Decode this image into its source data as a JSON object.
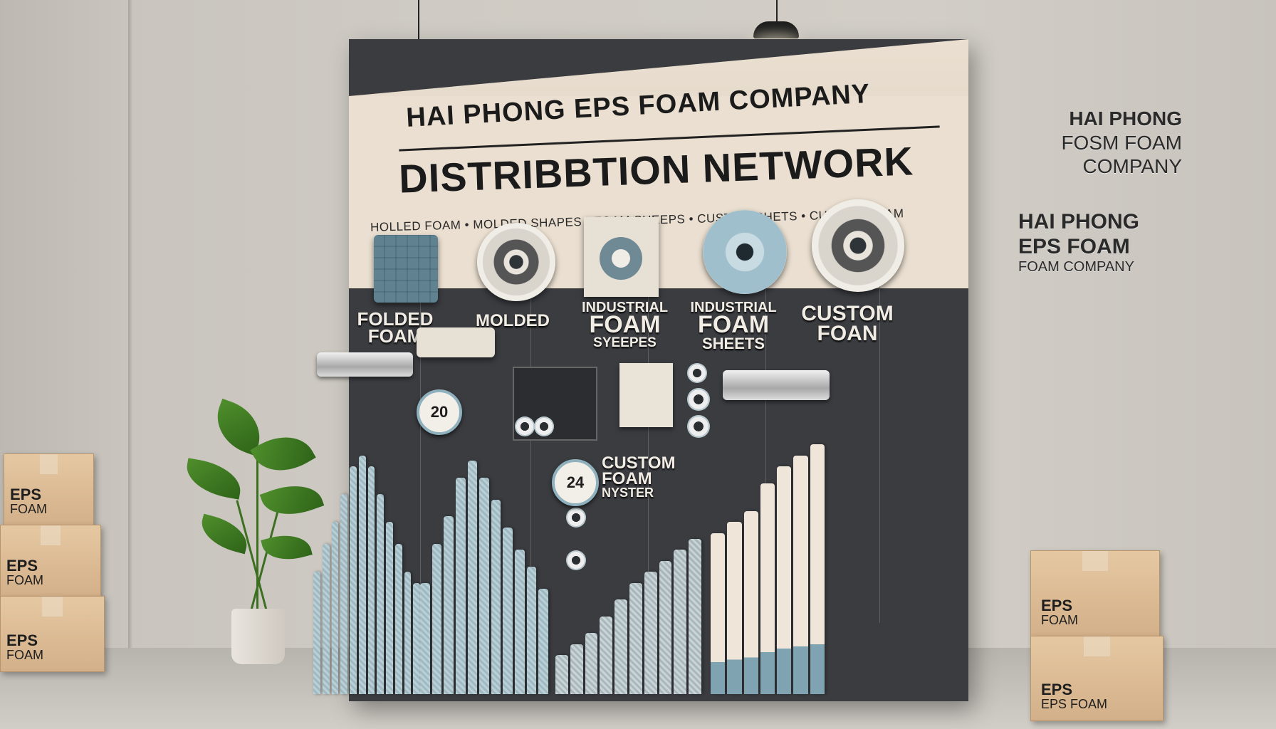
{
  "banner": {
    "title_line1": "HAI PHONG EPS FOAM COMPANY",
    "title_line2": "DISTRIBBTION NETWORK",
    "subtitle": "HOLLED FOAM  •  MOLDED SHAPES  •  FOAM SHEEPS  •  CUSTOM SHETS  •  CUSTOM FOAM"
  },
  "categories": [
    {
      "line1": "FOLDED",
      "line2": "FOAM",
      "line3": ""
    },
    {
      "line1": "MOLDED",
      "line2": "",
      "line3": ""
    },
    {
      "line1": "INDUSTRIAL",
      "line2": "FOAM",
      "line3": "SYEEPES"
    },
    {
      "line1": "INDUSTRIAL",
      "line2": "FOAM",
      "line3": "SHEETS"
    },
    {
      "line1": "CUSTOM",
      "line2": "FOAN",
      "line3": ""
    }
  ],
  "badges": {
    "first": "20",
    "second": "24"
  },
  "custom_block": {
    "line1": "CUSTOM",
    "line2": "FOAM",
    "line3": "NYSTER"
  },
  "side_text": {
    "block1": [
      "HAI PHONG",
      "FOSM FOAM",
      "COMPANY"
    ],
    "block2": [
      "HAI PHONG",
      "EPS FOAM",
      "FOAM COMPANY"
    ]
  },
  "boxes_left": [
    {
      "line1": "EPS",
      "line2": "FOAM"
    },
    {
      "line1": "EPS",
      "line2": "FOAM"
    },
    {
      "line1": "EPS",
      "line2": "FOAM"
    }
  ],
  "boxes_right": [
    {
      "line1": "EPS",
      "line2": "FOAM"
    },
    {
      "line1": "EPS",
      "line2": "EPS FOAM"
    }
  ],
  "bar_groups": [
    {
      "levels": [
        0.44,
        0.54,
        0.62,
        0.72,
        0.82,
        0.86,
        0.82,
        0.72,
        0.62,
        0.54,
        0.44,
        0.4
      ]
    },
    {
      "levels": [
        0.4,
        0.54,
        0.64,
        0.78,
        0.84,
        0.78,
        0.7,
        0.6,
        0.52,
        0.46,
        0.38
      ]
    },
    {
      "levels": [
        0.14,
        0.18,
        0.22,
        0.28,
        0.34,
        0.4,
        0.44,
        0.48,
        0.52,
        0.56
      ]
    },
    {
      "levels": [
        0.58,
        0.62,
        0.66,
        0.76,
        0.82,
        0.86,
        0.9
      ]
    }
  ],
  "colors": {
    "banner_dark": "#3a3c40",
    "banner_light": "#eadfd0",
    "accent_blue": "#8fb0bd"
  }
}
